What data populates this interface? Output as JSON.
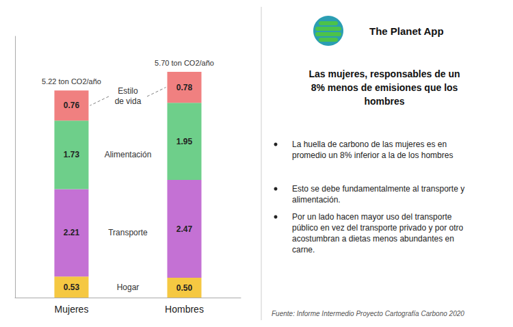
{
  "chart_data": {
    "type": "bar",
    "stacked": true,
    "data_labels": true,
    "grid": false,
    "tick_labels": "x",
    "categories": [
      "Mujeres",
      "Hombres"
    ],
    "ylim": [
      0,
      6.6
    ],
    "series": [
      {
        "name": "Hogar",
        "label": "Hogar",
        "color": "#f5c842",
        "values": [
          0.53,
          0.5
        ],
        "value_labels": [
          "0.53",
          "0.50"
        ]
      },
      {
        "name": "Transporte",
        "label": "Transporte",
        "color": "#c471d4",
        "values": [
          2.21,
          2.47
        ]
      },
      {
        "name": "Alimentación",
        "label": "Alimentación",
        "color": "#6ecf8a",
        "values": [
          1.73,
          1.95
        ]
      },
      {
        "name": "Estilo de vida",
        "label": "Estilo\nde vida",
        "color": "#f08080",
        "values": [
          0.76,
          0.78
        ]
      }
    ],
    "annotations": [
      {
        "category": "Mujeres",
        "text": "5.22 ton CO2/año"
      },
      {
        "category": "Hombres",
        "text": "5.70 ton CO2/año"
      }
    ],
    "header": "The Planet App",
    "title": "Las mujeres, responsables de un\n8% menos de emisiones que los\nhombres",
    "bullets": [
      "La huella de carbono de las mujeres es en\npromedio un 8% inferior a la de los hombres",
      "Esto se debe fundamentalmente al transporte y\nalimentación.",
      "Por un lado hacen mayor uso del transporte\npúblico en vez del transporte privado y por otro\nacostumbran a dietas menos abundantes en\ncarne."
    ],
    "source": "Fuente: Informe Intermedio Proyecto Cartografía Carbono 2020"
  }
}
